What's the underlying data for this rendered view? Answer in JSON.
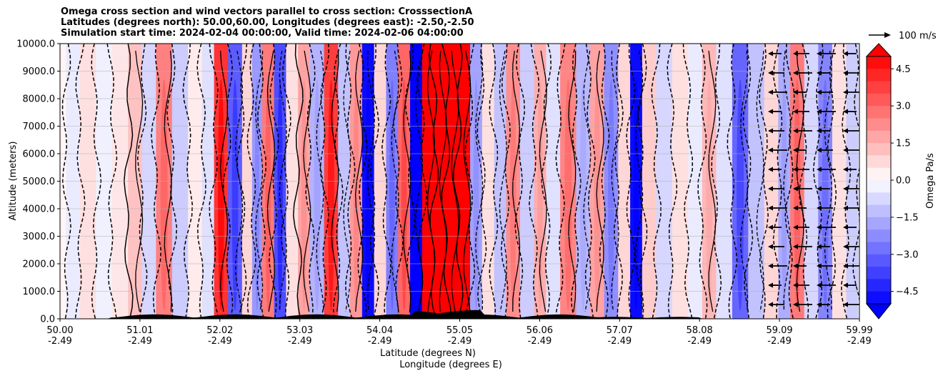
{
  "chart_data": {
    "type": "heatmap",
    "title_lines": [
      "Omega cross section and wind vectors parallel to cross section: CrosssectionA",
      "Latitudes (degrees north): 50.00,60.00, Longitudes (degrees east): -2.50,-2.50",
      "Simulation start time: 2024-02-04 00:00:00, Valid time: 2024-02-06 04:00:00"
    ],
    "ylabel": "Altitude (meters)",
    "xlabel_lat": "Latitude (degrees N)",
    "xlabel_lon": "Longitude (degrees E)",
    "yticks": [
      "0.0",
      "1000.0",
      "2000.0",
      "3000.0",
      "4000.0",
      "5000.0",
      "6000.0",
      "7000.0",
      "8000.0",
      "9000.0",
      "10000.0"
    ],
    "ylim": [
      0,
      10000
    ],
    "xlim": [
      50.0,
      59.99
    ],
    "grid": "horizontal",
    "xticks": [
      {
        "lat": "50.00",
        "lon": "-2.49"
      },
      {
        "lat": "51.01",
        "lon": "-2.49"
      },
      {
        "lat": "52.02",
        "lon": "-2.49"
      },
      {
        "lat": "53.03",
        "lon": "-2.49"
      },
      {
        "lat": "54.04",
        "lon": "-2.49"
      },
      {
        "lat": "55.05",
        "lon": "-2.49"
      },
      {
        "lat": "56.06",
        "lon": "-2.49"
      },
      {
        "lat": "57.07",
        "lon": "-2.49"
      },
      {
        "lat": "58.08",
        "lon": "-2.49"
      },
      {
        "lat": "59.09",
        "lon": "-2.49"
      },
      {
        "lat": "59.99",
        "lon": "-2.49"
      }
    ],
    "colorbar": {
      "label": "Omega Pa/s",
      "range": [
        -5.0,
        5.0
      ],
      "extend": "both",
      "ticks": [
        "4.5",
        "3.0",
        "1.5",
        "0.0",
        "−1.5",
        "−3.0",
        "−4.5"
      ],
      "colors": {
        "negative": "#0000ff",
        "zero": "#ffffff",
        "positive": "#ff0000"
      }
    },
    "quiver_key": {
      "label": "100 m/s",
      "speed": 100
    },
    "omega_bands": [
      {
        "lat": 50.0,
        "value": 0.2
      },
      {
        "lat": 50.15,
        "value": -0.4
      },
      {
        "lat": 50.35,
        "value": 0.6
      },
      {
        "lat": 50.55,
        "value": -0.3
      },
      {
        "lat": 50.75,
        "value": 0.5
      },
      {
        "lat": 50.95,
        "value": 1.2
      },
      {
        "lat": 51.1,
        "value": -0.8
      },
      {
        "lat": 51.3,
        "value": 2.5
      },
      {
        "lat": 51.5,
        "value": -1.0
      },
      {
        "lat": 51.7,
        "value": 0.4
      },
      {
        "lat": 51.85,
        "value": -0.6
      },
      {
        "lat": 52.0,
        "value": 4.0
      },
      {
        "lat": 52.2,
        "value": -3.2
      },
      {
        "lat": 52.35,
        "value": 0.8
      },
      {
        "lat": 52.45,
        "value": -2.0
      },
      {
        "lat": 52.6,
        "value": 2.6
      },
      {
        "lat": 52.75,
        "value": -3.5
      },
      {
        "lat": 52.9,
        "value": 0.6
      },
      {
        "lat": 53.05,
        "value": 1.8
      },
      {
        "lat": 53.2,
        "value": -1.5
      },
      {
        "lat": 53.4,
        "value": 3.8
      },
      {
        "lat": 53.55,
        "value": -1.2
      },
      {
        "lat": 53.7,
        "value": 2.0
      },
      {
        "lat": 53.85,
        "value": -4.8
      },
      {
        "lat": 54.0,
        "value": 0.8
      },
      {
        "lat": 54.15,
        "value": -2.5
      },
      {
        "lat": 54.3,
        "value": 3.0
      },
      {
        "lat": 54.45,
        "value": -5.0
      },
      {
        "lat": 54.6,
        "value": 5.0
      },
      {
        "lat": 54.75,
        "value": 5.0
      },
      {
        "lat": 54.9,
        "value": 5.0
      },
      {
        "lat": 55.05,
        "value": 5.0
      },
      {
        "lat": 55.2,
        "value": -1.8
      },
      {
        "lat": 55.35,
        "value": 0.6
      },
      {
        "lat": 55.5,
        "value": -1.2
      },
      {
        "lat": 55.65,
        "value": 2.2
      },
      {
        "lat": 55.85,
        "value": -1.0
      },
      {
        "lat": 56.0,
        "value": 1.6
      },
      {
        "lat": 56.15,
        "value": -0.6
      },
      {
        "lat": 56.35,
        "value": 2.4
      },
      {
        "lat": 56.55,
        "value": -1.4
      },
      {
        "lat": 56.7,
        "value": 1.8
      },
      {
        "lat": 56.9,
        "value": -2.2
      },
      {
        "lat": 57.05,
        "value": 0.8
      },
      {
        "lat": 57.2,
        "value": -4.8
      },
      {
        "lat": 57.35,
        "value": 1.0
      },
      {
        "lat": 57.55,
        "value": -0.8
      },
      {
        "lat": 57.75,
        "value": 0.6
      },
      {
        "lat": 57.95,
        "value": -0.4
      },
      {
        "lat": 58.1,
        "value": 1.4
      },
      {
        "lat": 58.3,
        "value": -0.6
      },
      {
        "lat": 58.5,
        "value": -3.0
      },
      {
        "lat": 58.7,
        "value": -1.2
      },
      {
        "lat": 58.9,
        "value": 0.8
      },
      {
        "lat": 59.05,
        "value": -1.6
      },
      {
        "lat": 59.2,
        "value": 2.6
      },
      {
        "lat": 59.4,
        "value": -0.8
      },
      {
        "lat": 59.55,
        "value": -2.4
      },
      {
        "lat": 59.75,
        "value": 0.6
      },
      {
        "lat": 59.9,
        "value": -1.0
      }
    ]
  }
}
